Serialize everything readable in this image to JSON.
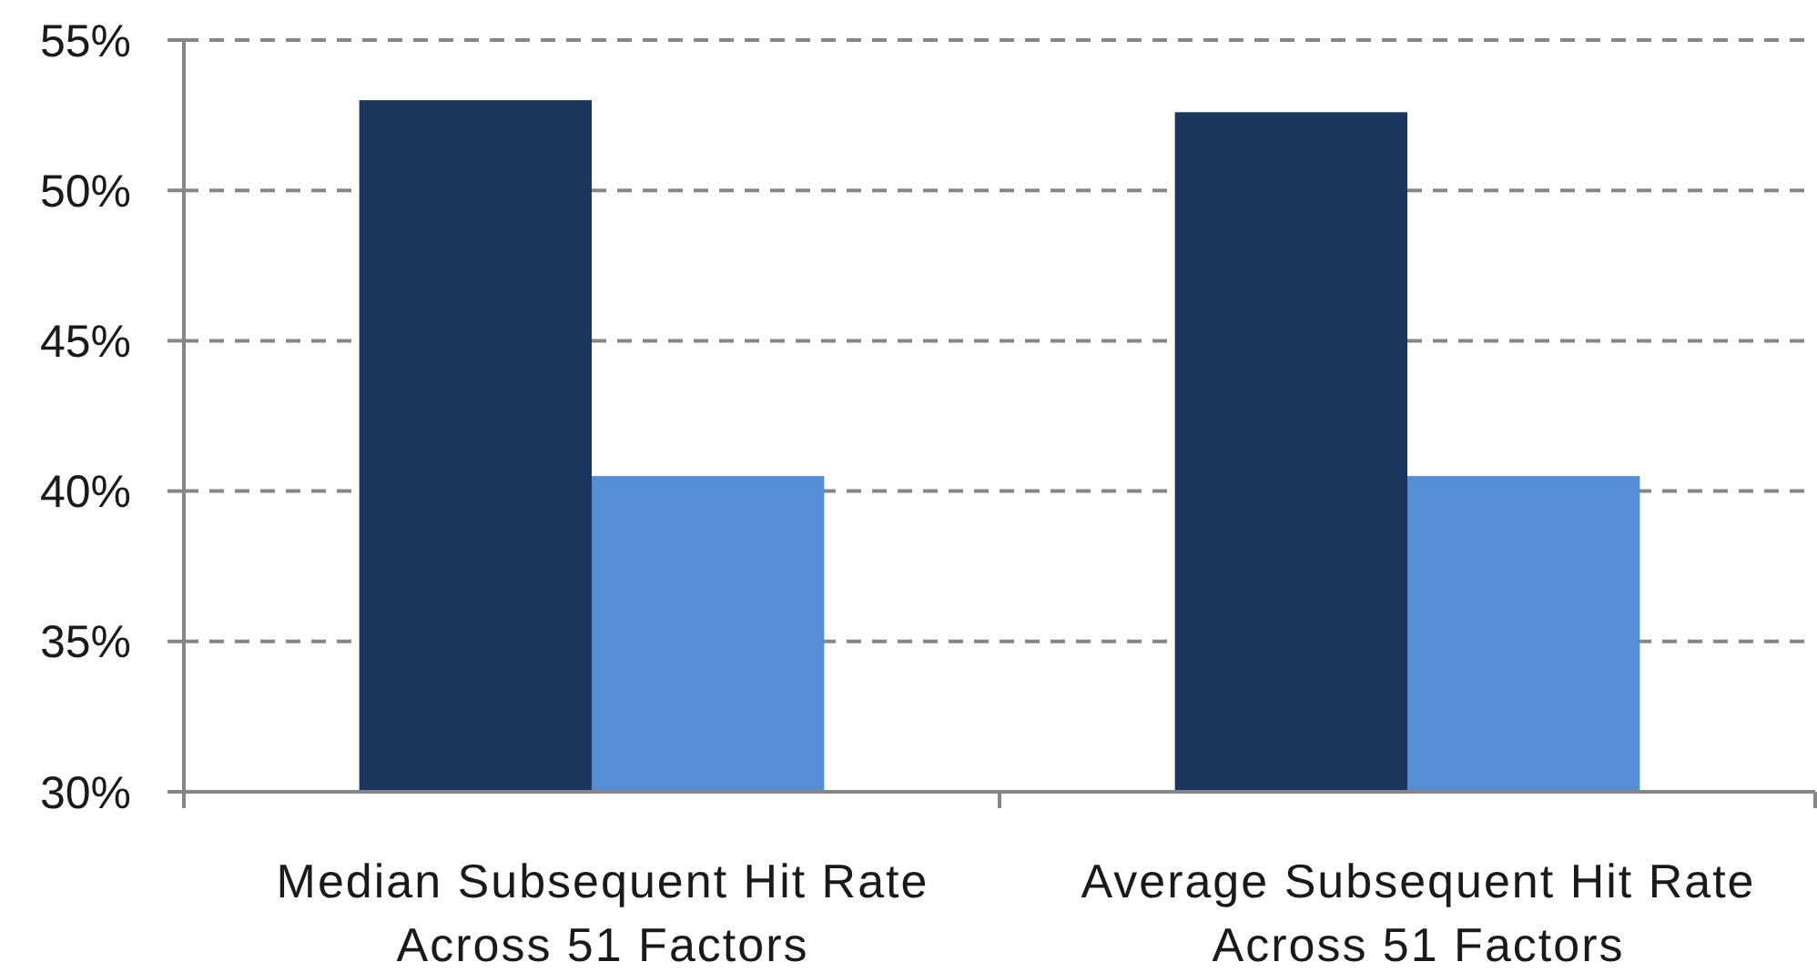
{
  "chart_data": {
    "type": "bar",
    "categories": [
      "Median Subsequent Hit Rate Across 51 Factors",
      "Average Subsequent Hit Rate Across 51 Factors"
    ],
    "series": [
      {
        "color": "#1a365d",
        "values": [
          53.0,
          52.6
        ]
      },
      {
        "color": "#558ed5",
        "values": [
          40.5,
          40.5
        ]
      }
    ],
    "ylim": [
      30,
      55
    ],
    "yticks": [
      {
        "value": 30,
        "label": "30%"
      },
      {
        "value": 35,
        "label": "35%"
      },
      {
        "value": 40,
        "label": "40%"
      },
      {
        "value": 45,
        "label": "45%"
      },
      {
        "value": 50,
        "label": "50%"
      },
      {
        "value": 55,
        "label": "55%"
      }
    ],
    "grid": "y"
  }
}
